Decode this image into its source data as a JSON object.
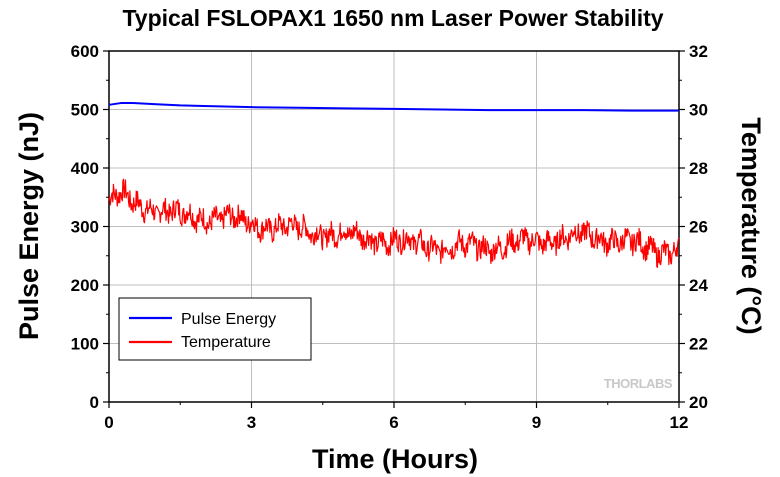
{
  "chart_data": {
    "type": "line",
    "title": "Typical FSLOPAX1 1650 nm Laser Power Stability",
    "xlabel": "Time (Hours)",
    "ylabel": "Pulse Energy (nJ)",
    "y2label": "Temperature (°C)",
    "xlim": [
      0,
      12
    ],
    "ylim": [
      0,
      600
    ],
    "y2lim": [
      20,
      32
    ],
    "xticks": [
      "0",
      "3",
      "6",
      "9",
      "12"
    ],
    "yticks": [
      "0",
      "100",
      "200",
      "300",
      "400",
      "500",
      "600"
    ],
    "y2ticks": [
      "20",
      "22",
      "24",
      "26",
      "28",
      "30",
      "32"
    ],
    "grid": true,
    "legend_position": "lower-left",
    "watermark": "THORLABS",
    "series": [
      {
        "name": "Pulse Energy",
        "axis": "left",
        "color": "#0000ff",
        "x": [
          0,
          0.25,
          0.5,
          1,
          1.5,
          2,
          3,
          4,
          5,
          6,
          7,
          8,
          9,
          10,
          11,
          12
        ],
        "y": [
          508,
          511,
          511,
          509,
          507,
          506,
          504,
          503,
          502,
          501,
          500,
          499,
          499,
          499,
          498,
          498
        ]
      },
      {
        "name": "Temperature",
        "axis": "right",
        "color": "#ff0000",
        "x": [
          0,
          0.25,
          0.5,
          1,
          1.5,
          2,
          2.5,
          3,
          3.5,
          4,
          4.5,
          5,
          5.5,
          6,
          6.5,
          7,
          7.5,
          8,
          8.5,
          9,
          9.5,
          10,
          10.5,
          11,
          11.5,
          12
        ],
        "y": [
          26.9,
          27.1,
          26.8,
          26.6,
          26.4,
          26.3,
          26.3,
          26.1,
          26.0,
          25.9,
          25.8,
          25.7,
          25.6,
          25.5,
          25.4,
          25.3,
          25.3,
          25.3,
          25.4,
          25.5,
          25.6,
          25.7,
          25.6,
          25.4,
          25.2,
          25.2
        ]
      }
    ]
  }
}
